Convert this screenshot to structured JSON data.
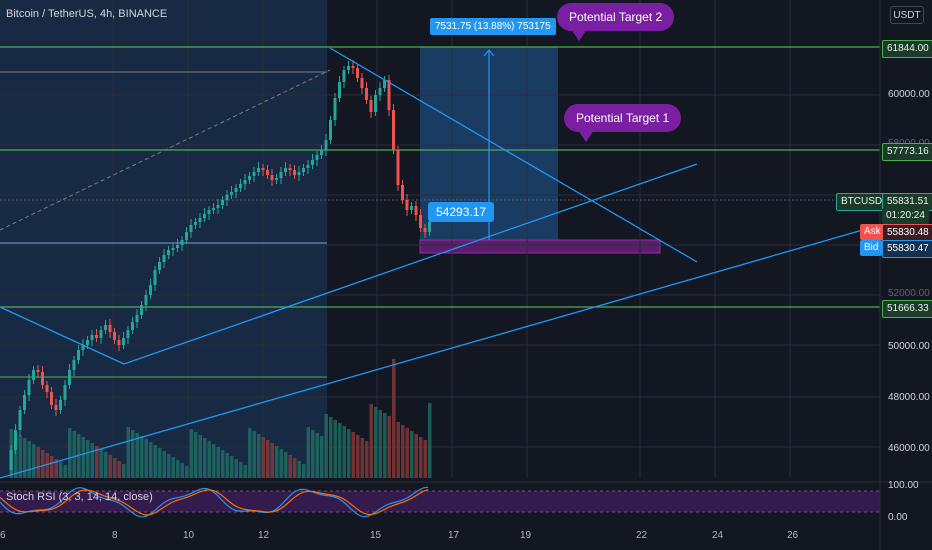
{
  "header": {
    "symbol_title": "Bitcoin / TetherUS, 4h, BINANCE",
    "currency": "USDT"
  },
  "price_labels": {
    "target2": "61844.00",
    "target1": "57773.16",
    "symbol_tag": "BTCUSDT",
    "last_price": "55831.51",
    "countdown": "01:20:24",
    "ask_label": "Ask",
    "ask_price": "55830.48",
    "bid_label": "Bid",
    "bid_price": "55830.47",
    "support": "51666.33"
  },
  "price_axis": [
    "60000.00",
    "58000.00",
    "52000.00",
    "50000.00",
    "48000.00",
    "46000.00"
  ],
  "osc_axis": [
    "100.00",
    "0.00"
  ],
  "date_axis": [
    "6",
    "8",
    "10",
    "12",
    "15",
    "17",
    "19",
    "22",
    "24",
    "26"
  ],
  "annotations": {
    "target2_bubble": "Potential Target 2",
    "target1_bubble": "Potential Target 1",
    "measure_text": "7531.75 (13.88%) 753175",
    "entry_callout": "54293.17"
  },
  "indicator": {
    "name": "Stoch RSI (3, 3, 14, 14, close)"
  },
  "colors": {
    "background": "#131722",
    "up": "#26a69a",
    "down": "#ef5350",
    "trendline": "#2196f3",
    "levels": "#4caf50",
    "annotation": "#7b1fa2"
  },
  "icons": [
    "chart-symbol-icon"
  ]
}
